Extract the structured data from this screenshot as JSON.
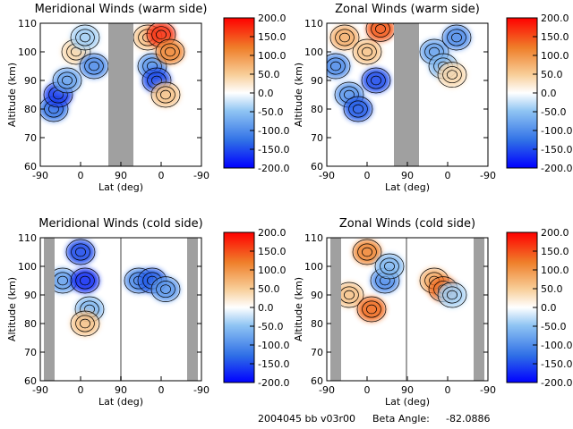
{
  "footer": {
    "file_id": "2004045 bb v03r00",
    "beta_label": "Beta Angle:",
    "beta_value": "-82.0886"
  },
  "colorbar": {
    "ticks": [
      "200.0",
      "150.0",
      "100.0",
      "50.0",
      "0.0",
      "-50.0",
      "-100.0",
      "-150.0",
      "-200.0"
    ],
    "range": [
      -200,
      200
    ],
    "colors": [
      "#0000ff",
      "#3a7be8",
      "#8ec2f2",
      "#ffffff",
      "#f7c48a",
      "#f07a28",
      "#ff0000"
    ]
  },
  "chart_data": [
    {
      "type": "heatmap",
      "title": "Meridional Winds (warm side)",
      "xlabel": "Lat (deg)",
      "ylabel": "Altitude (km)",
      "xticks": [
        "-90",
        "0",
        "90",
        "0",
        "-90"
      ],
      "yticks": [
        "60",
        "70",
        "80",
        "90",
        "100",
        "110"
      ],
      "ylim": [
        60,
        110
      ],
      "gap_color": "#a0a0a0",
      "cells": [
        {
          "lat": -60,
          "alt": 80,
          "v": -120
        },
        {
          "lat": -50,
          "alt": 85,
          "v": -160
        },
        {
          "lat": -30,
          "alt": 90,
          "v": -80
        },
        {
          "lat": -10,
          "alt": 100,
          "v": 40
        },
        {
          "lat": 10,
          "alt": 105,
          "v": -40
        },
        {
          "lat": 30,
          "alt": 95,
          "v": -100
        },
        {
          "lat": 150,
          "alt": 105,
          "v": 60
        },
        {
          "lat": 160,
          "alt": 95,
          "v": -90
        },
        {
          "lat": 170,
          "alt": 90,
          "v": -150
        },
        {
          "lat": 180,
          "alt": 106,
          "v": 170
        },
        {
          "lat": 190,
          "alt": 85,
          "v": 60
        },
        {
          "lat": 200,
          "alt": 100,
          "v": 120
        }
      ]
    },
    {
      "type": "heatmap",
      "title": "Zonal Winds (warm side)",
      "xlabel": "Lat (deg)",
      "ylabel": "Altitude (km)",
      "xticks": [
        "-90",
        "0",
        "90",
        "0",
        "-90"
      ],
      "yticks": [
        "60",
        "70",
        "80",
        "90",
        "100",
        "110"
      ],
      "ylim": [
        60,
        110
      ],
      "cells": [
        {
          "lat": -70,
          "alt": 95,
          "v": -100
        },
        {
          "lat": -50,
          "alt": 105,
          "v": 80
        },
        {
          "lat": -40,
          "alt": 85,
          "v": -90
        },
        {
          "lat": -20,
          "alt": 80,
          "v": -140
        },
        {
          "lat": 0,
          "alt": 100,
          "v": 60
        },
        {
          "lat": 20,
          "alt": 90,
          "v": -150
        },
        {
          "lat": 30,
          "alt": 108,
          "v": 150
        },
        {
          "lat": 150,
          "alt": 100,
          "v": -80
        },
        {
          "lat": 170,
          "alt": 95,
          "v": -60
        },
        {
          "lat": 190,
          "alt": 92,
          "v": 40
        },
        {
          "lat": 200,
          "alt": 105,
          "v": -100
        }
      ]
    },
    {
      "type": "heatmap",
      "title": "Meridional Winds (cold side)",
      "xlabel": "Lat (deg)",
      "ylabel": "Altitude (km)",
      "xticks": [
        "-90",
        "0",
        "90",
        "0",
        "-90"
      ],
      "yticks": [
        "60",
        "70",
        "80",
        "90",
        "100",
        "110"
      ],
      "ylim": [
        60,
        110
      ],
      "cells": [
        {
          "lat": -40,
          "alt": 95,
          "v": -80
        },
        {
          "lat": 0,
          "alt": 105,
          "v": -150
        },
        {
          "lat": 10,
          "alt": 95,
          "v": -170
        },
        {
          "lat": 20,
          "alt": 85,
          "v": -60
        },
        {
          "lat": 10,
          "alt": 80,
          "v": 60
        },
        {
          "lat": 130,
          "alt": 95,
          "v": -100
        },
        {
          "lat": 160,
          "alt": 95,
          "v": -140
        },
        {
          "lat": 190,
          "alt": 92,
          "v": -90
        }
      ]
    },
    {
      "type": "heatmap",
      "title": "Zonal Winds (cold side)",
      "xlabel": "Lat (deg)",
      "ylabel": "Altitude (km)",
      "xticks": [
        "-90",
        "0",
        "90",
        "0",
        "-90"
      ],
      "yticks": [
        "60",
        "70",
        "80",
        "90",
        "100",
        "110"
      ],
      "ylim": [
        60,
        110
      ],
      "cells": [
        {
          "lat": -40,
          "alt": 90,
          "v": 60
        },
        {
          "lat": 0,
          "alt": 105,
          "v": 120
        },
        {
          "lat": 10,
          "alt": 85,
          "v": 140
        },
        {
          "lat": 40,
          "alt": 95,
          "v": -100
        },
        {
          "lat": 50,
          "alt": 100,
          "v": -60
        },
        {
          "lat": 150,
          "alt": 95,
          "v": 80
        },
        {
          "lat": 170,
          "alt": 92,
          "v": 140
        },
        {
          "lat": 190,
          "alt": 90,
          "v": -40
        }
      ]
    }
  ]
}
